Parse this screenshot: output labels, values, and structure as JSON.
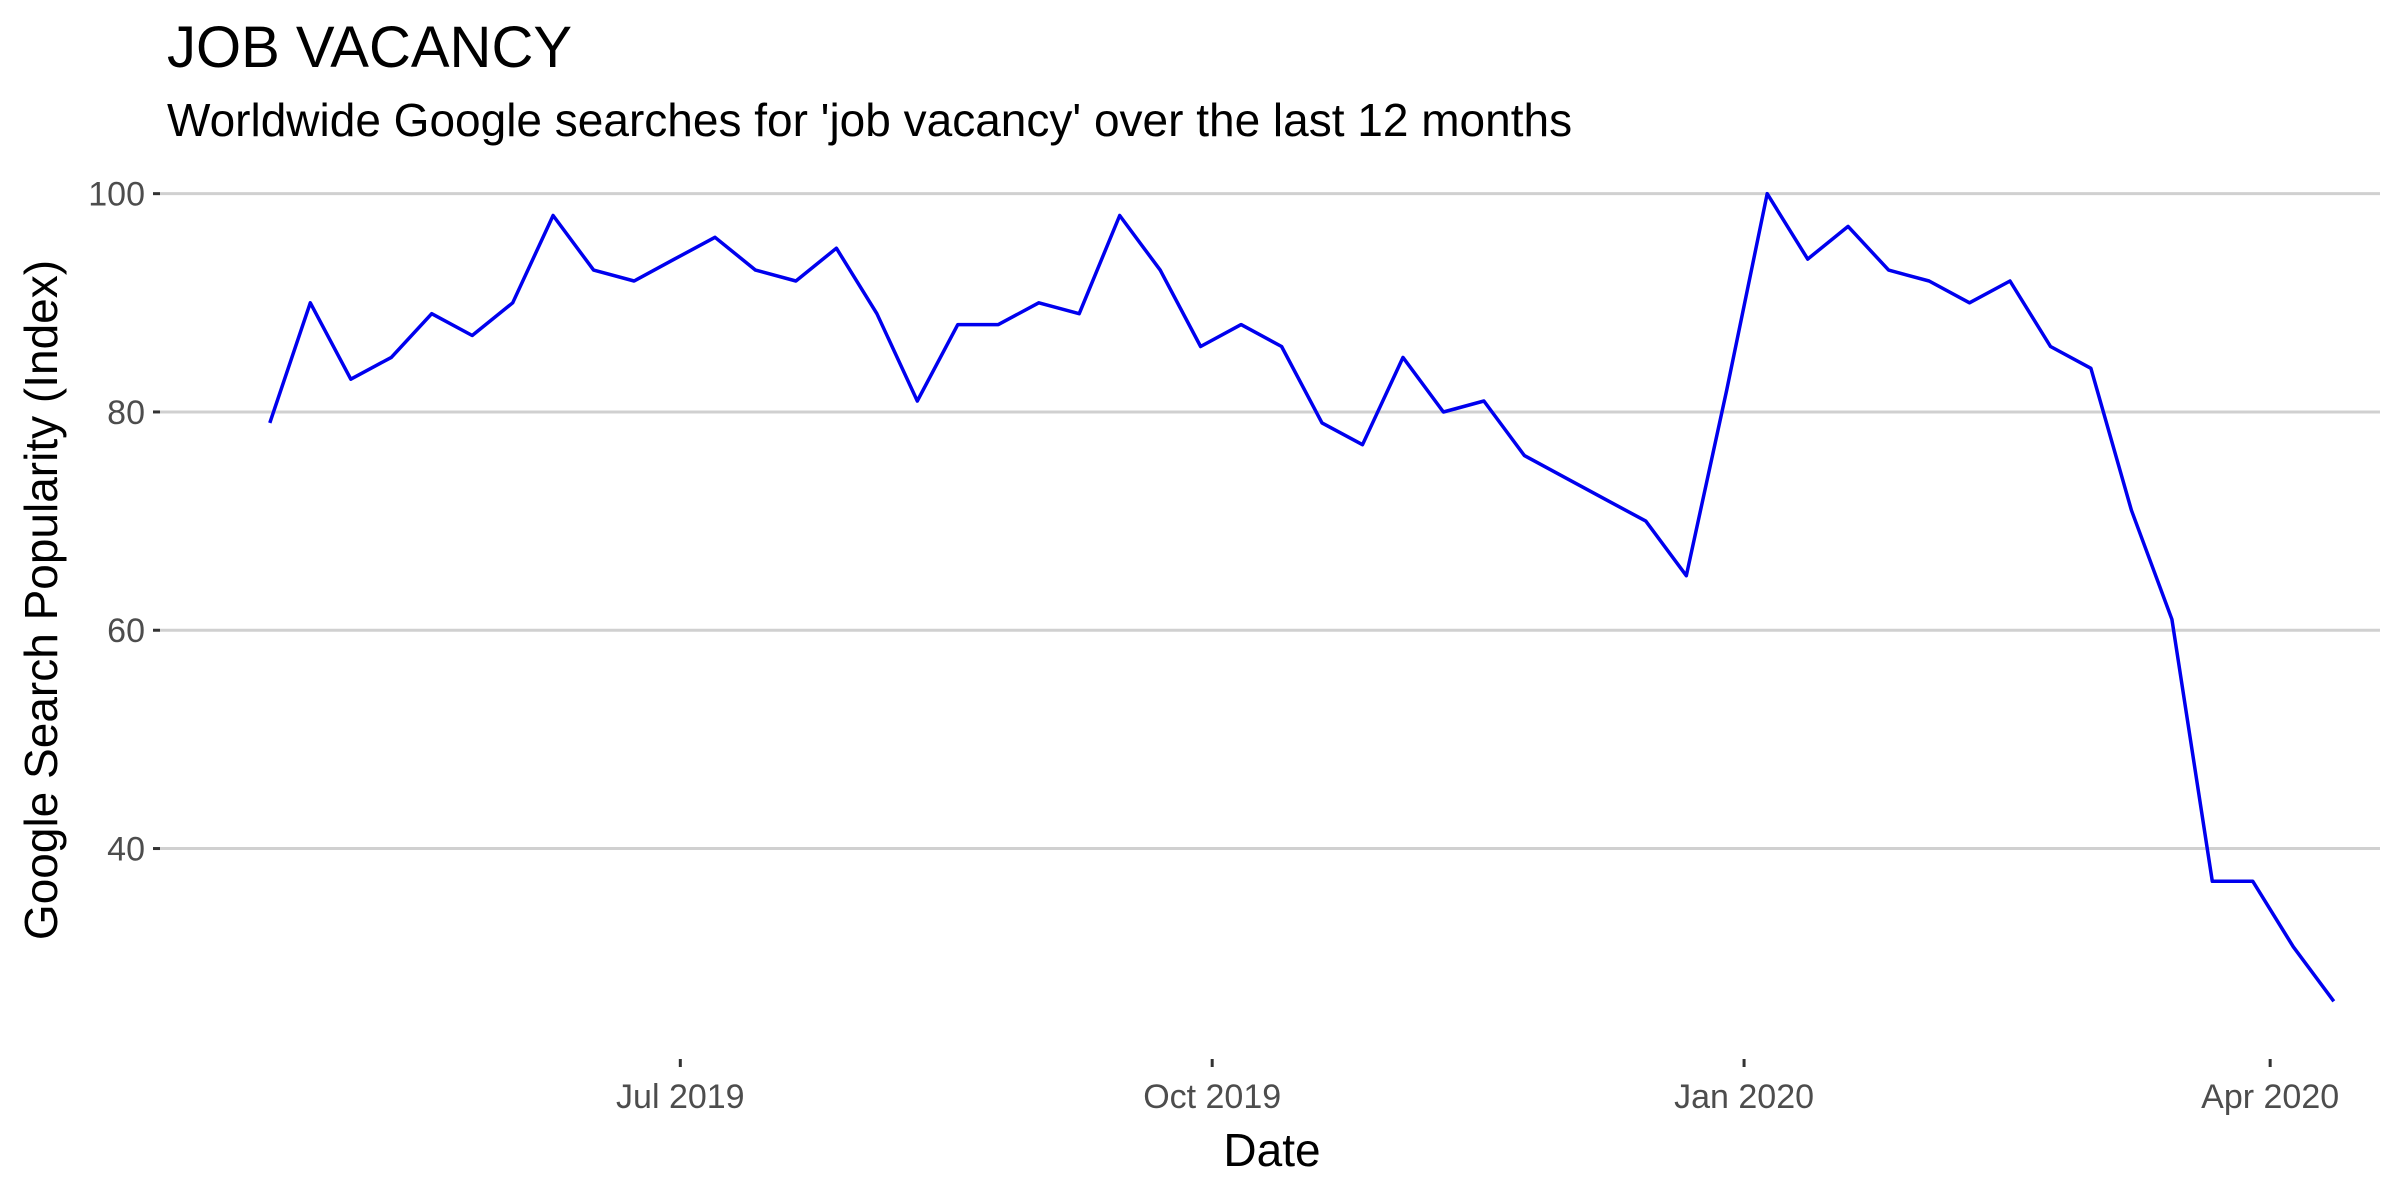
{
  "chart_data": {
    "type": "line",
    "title": "JOB VACANCY",
    "subtitle": "Worldwide Google searches for 'job vacancy' over the last 12 months",
    "xlabel": "Date",
    "ylabel": "Google Search Popularity (Index)",
    "ylim": [
      22,
      104
    ],
    "yticks": [
      40,
      60,
      80,
      100
    ],
    "xlim": [
      "2019-04-02",
      "2020-04-20"
    ],
    "xticks": [
      {
        "date": "2019-07-01",
        "label": "Jul 2019"
      },
      {
        "date": "2019-10-01",
        "label": "Oct 2019"
      },
      {
        "date": "2020-01-01",
        "label": "Jan 2020"
      },
      {
        "date": "2020-04-01",
        "label": "Apr 2020"
      }
    ],
    "grid": "horizontal",
    "line_color": "#0000ee",
    "series": [
      {
        "x": [
          "2019-04-21",
          "2019-04-28",
          "2019-05-05",
          "2019-05-12",
          "2019-05-19",
          "2019-05-26",
          "2019-06-02",
          "2019-06-09",
          "2019-06-16",
          "2019-06-23",
          "2019-06-30",
          "2019-07-07",
          "2019-07-14",
          "2019-07-21",
          "2019-07-28",
          "2019-08-04",
          "2019-08-11",
          "2019-08-18",
          "2019-08-25",
          "2019-09-01",
          "2019-09-08",
          "2019-09-15",
          "2019-09-22",
          "2019-09-29",
          "2019-10-06",
          "2019-10-13",
          "2019-10-20",
          "2019-10-27",
          "2019-11-03",
          "2019-11-10",
          "2019-11-17",
          "2019-11-24",
          "2019-12-01",
          "2019-12-08",
          "2019-12-15",
          "2019-12-22",
          "2019-12-29",
          "2020-01-05",
          "2020-01-12",
          "2020-01-19",
          "2020-01-26",
          "2020-02-02",
          "2020-02-09",
          "2020-02-16",
          "2020-02-23",
          "2020-03-01",
          "2020-03-08",
          "2020-03-15",
          "2020-03-22",
          "2020-03-29",
          "2020-04-05",
          "2020-04-12"
        ],
        "values": [
          79,
          90,
          83,
          85,
          89,
          87,
          90,
          98,
          93,
          92,
          94,
          96,
          93,
          92,
          95,
          89,
          81,
          88,
          88,
          90,
          89,
          98,
          93,
          86,
          88,
          86,
          79,
          77,
          85,
          80,
          81,
          76,
          74,
          72,
          70,
          65,
          82,
          100,
          94,
          97,
          93,
          92,
          90,
          92,
          86,
          84,
          71,
          61,
          37,
          37,
          31,
          26
        ]
      }
    ]
  }
}
